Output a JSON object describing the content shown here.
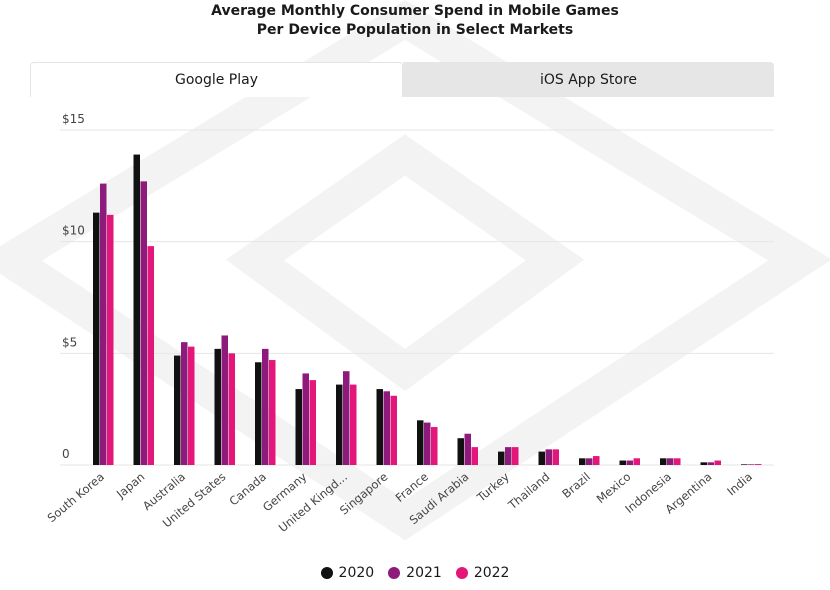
{
  "title_line1": "Average Monthly Consumer Spend in Mobile Games",
  "title_line2": "Per Device Population in Select Markets",
  "tabs": [
    {
      "label": "Google Play",
      "active": true
    },
    {
      "label": "iOS App Store",
      "active": false
    }
  ],
  "colors": {
    "2020": "#111111",
    "2021": "#8e1a7c",
    "2022": "#e3167a",
    "grid": "#e6e6e6"
  },
  "chart_data": {
    "type": "bar",
    "title": "Average Monthly Consumer Spend in Mobile Games Per Device Population in Select Markets",
    "xlabel": "",
    "ylabel": "",
    "ylim": [
      0,
      15
    ],
    "yticks": [
      0,
      5,
      10,
      15
    ],
    "ytick_labels": [
      "0",
      "$5",
      "$10",
      "$15"
    ],
    "categories": [
      "South Korea",
      "Japan",
      "Australia",
      "United States",
      "Canada",
      "Germany",
      "United Kingd...",
      "Singapore",
      "France",
      "Saudi Arabia",
      "Turkey",
      "Thailand",
      "Brazil",
      "Mexico",
      "Indonesia",
      "Argentina",
      "India"
    ],
    "series": [
      {
        "name": "2020",
        "values": [
          11.3,
          13.9,
          4.9,
          5.2,
          4.6,
          3.4,
          3.6,
          3.4,
          2.0,
          1.2,
          0.6,
          0.6,
          0.3,
          0.2,
          0.3,
          0.12,
          0.03
        ]
      },
      {
        "name": "2021",
        "values": [
          12.6,
          12.7,
          5.5,
          5.8,
          5.2,
          4.1,
          4.2,
          3.3,
          1.9,
          1.4,
          0.8,
          0.7,
          0.3,
          0.2,
          0.3,
          0.12,
          0.03
        ]
      },
      {
        "name": "2022",
        "values": [
          11.2,
          9.8,
          5.3,
          5.0,
          4.7,
          3.8,
          3.6,
          3.1,
          1.7,
          0.8,
          0.8,
          0.7,
          0.4,
          0.3,
          0.3,
          0.2,
          0.04
        ]
      }
    ],
    "legend_position": "bottom"
  }
}
